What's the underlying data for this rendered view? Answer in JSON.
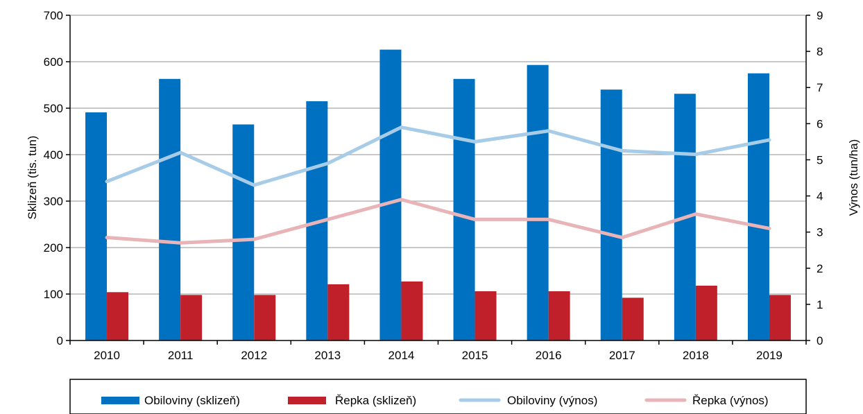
{
  "chart_data": {
    "type": "bar",
    "categories": [
      "2010",
      "2011",
      "2012",
      "2013",
      "2014",
      "2015",
      "2016",
      "2017",
      "2018",
      "2019"
    ],
    "series": [
      {
        "name": "Obiloviny (sklizeň)",
        "type": "bar",
        "axis": "left",
        "color": "#0070C0",
        "values": [
          491,
          563,
          465,
          515,
          626,
          563,
          593,
          540,
          531,
          575
        ]
      },
      {
        "name": "Řepka (sklizeň)",
        "type": "bar",
        "axis": "left",
        "color": "#C0202A",
        "values": [
          104,
          98,
          98,
          121,
          127,
          106,
          106,
          92,
          118,
          98
        ]
      },
      {
        "name": "Obiloviny (výnos)",
        "type": "line",
        "axis": "right",
        "color": "#A6CCE8",
        "values": [
          4.4,
          5.2,
          4.3,
          4.9,
          5.9,
          5.5,
          5.8,
          5.25,
          5.15,
          5.55
        ]
      },
      {
        "name": "Řepka (výnos)",
        "type": "line",
        "axis": "right",
        "color": "#E8B4B8",
        "values": [
          2.85,
          2.7,
          2.8,
          3.35,
          3.9,
          3.35,
          3.35,
          2.85,
          3.5,
          3.1
        ]
      }
    ],
    "ylabel": "Sklizeň (tis. tun)",
    "y2label": "Výnos (tun/ha)",
    "ylim": [
      0,
      700
    ],
    "y2lim": [
      0,
      9
    ],
    "yticks": [
      "0",
      "100",
      "200",
      "300",
      "400",
      "500",
      "600",
      "700"
    ],
    "y2ticks": [
      "0",
      "1",
      "2",
      "3",
      "4",
      "5",
      "6",
      "7",
      "8",
      "9"
    ],
    "grid": true,
    "legend": "bottom"
  }
}
